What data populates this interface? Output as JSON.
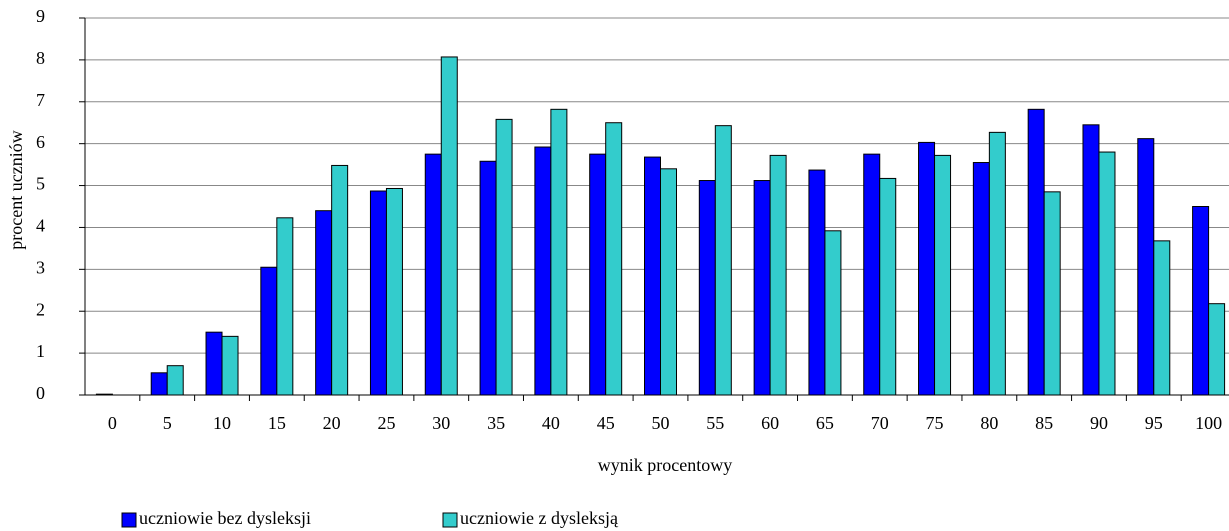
{
  "chart_data": {
    "type": "bar",
    "x_label": "wynik procentowy",
    "y_label": "procent uczniów",
    "categories": [
      "0",
      "5",
      "10",
      "15",
      "20",
      "25",
      "30",
      "35",
      "40",
      "45",
      "50",
      "55",
      "60",
      "65",
      "70",
      "75",
      "80",
      "85",
      "90",
      "95",
      "100"
    ],
    "series": [
      {
        "name": "uczniowie bez dysleksji",
        "color": "#0000ff",
        "values": [
          0.02,
          0.53,
          1.5,
          3.05,
          4.4,
          4.87,
          5.75,
          5.58,
          5.92,
          5.75,
          5.68,
          5.12,
          5.12,
          5.37,
          5.75,
          6.03,
          5.55,
          6.82,
          6.45,
          6.12,
          4.5
        ]
      },
      {
        "name": "uczniowie z dysleksją",
        "color": "#33cccc",
        "values": [
          0,
          0.7,
          1.4,
          4.23,
          5.48,
          4.93,
          8.07,
          6.58,
          6.82,
          6.5,
          5.4,
          6.43,
          5.72,
          3.92,
          5.17,
          5.72,
          6.27,
          4.85,
          5.8,
          3.68,
          2.18
        ]
      }
    ],
    "ylim": [
      0,
      9
    ],
    "yticks": [
      0,
      1,
      2,
      3,
      4,
      5,
      6,
      7,
      8,
      9
    ],
    "grid": true,
    "legend": "bottom"
  }
}
